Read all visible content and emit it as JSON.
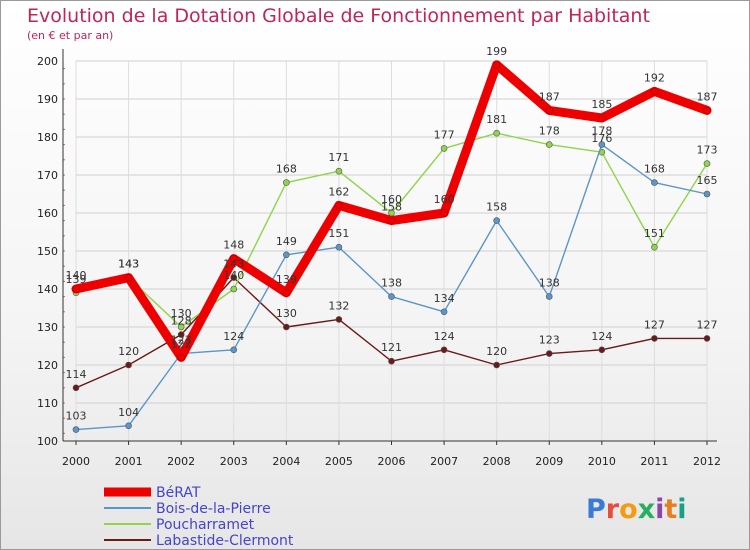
{
  "chart_data": {
    "type": "line",
    "title": "Evolution de la Dotation Globale de Fonctionnement par Habitant",
    "subtitle": "(en € et par an)",
    "x": [
      "2000",
      "2001",
      "2002",
      "2003",
      "2004",
      "2005",
      "2006",
      "2007",
      "2008",
      "2009",
      "2010",
      "2011",
      "2012"
    ],
    "ylim": [
      100,
      200
    ],
    "yticks": [
      "100",
      "110",
      "120",
      "130",
      "140",
      "150",
      "160",
      "170",
      "180",
      "190",
      "200"
    ],
    "series": [
      {
        "name": "Labastide-Clermont",
        "color": "#6b1a1a",
        "values": [
          114,
          120,
          128,
          143,
          130,
          132,
          121,
          124,
          120,
          123,
          124,
          127,
          127
        ],
        "labels": [
          "114",
          "120",
          "128",
          "143",
          "130",
          "132",
          "121",
          "124",
          "120",
          "123",
          "124",
          "127",
          "127"
        ]
      },
      {
        "name": "Poucharramet",
        "color": "#8fd44a",
        "values": [
          139,
          143,
          130,
          140,
          168,
          171,
          160,
          177,
          181,
          178,
          176,
          151,
          173
        ],
        "labels": [
          "139",
          "143",
          "130",
          "140",
          "168",
          "171",
          "160",
          "177",
          "181",
          "178",
          "176",
          "151",
          "173"
        ]
      },
      {
        "name": "Bois-de-la-Pierre",
        "color": "#5a96c8",
        "values": [
          103,
          104,
          123,
          124,
          149,
          151,
          138,
          134,
          158,
          138,
          178,
          168,
          165
        ],
        "labels": [
          "103",
          "104",
          "123",
          "124",
          "149",
          "151",
          "138",
          "134",
          "158",
          "138",
          "178",
          "168",
          "165"
        ]
      },
      {
        "name": "BéRAT",
        "color": "#ee0000",
        "values": [
          140,
          143,
          122,
          148,
          139,
          162,
          158,
          160,
          199,
          187,
          185,
          192,
          187
        ],
        "labels": [
          "140",
          "143",
          "122",
          "148",
          "139",
          "162",
          "158",
          "160",
          "199",
          "187",
          "185",
          "192",
          "187"
        ]
      }
    ],
    "legend": {
      "position": "bottom-left",
      "items": [
        {
          "name": "BéRAT",
          "color": "#ee0000",
          "text_color": "#4444cc"
        },
        {
          "name": "Bois-de-la-Pierre",
          "color": "#5a96c8",
          "text_color": "#4444cc"
        },
        {
          "name": "Poucharramet",
          "color": "#8fd44a",
          "text_color": "#4444cc"
        },
        {
          "name": "Labastide-Clermont",
          "color": "#6b1a1a",
          "text_color": "#4444cc"
        }
      ]
    }
  },
  "branding": {
    "logo_text": "Proxiti",
    "letter_colors": [
      "#3a7bd5",
      "#e84c3d",
      "#f39c12",
      "#27ae60",
      "#8e44ad",
      "#e67e22",
      "#16a085"
    ]
  }
}
